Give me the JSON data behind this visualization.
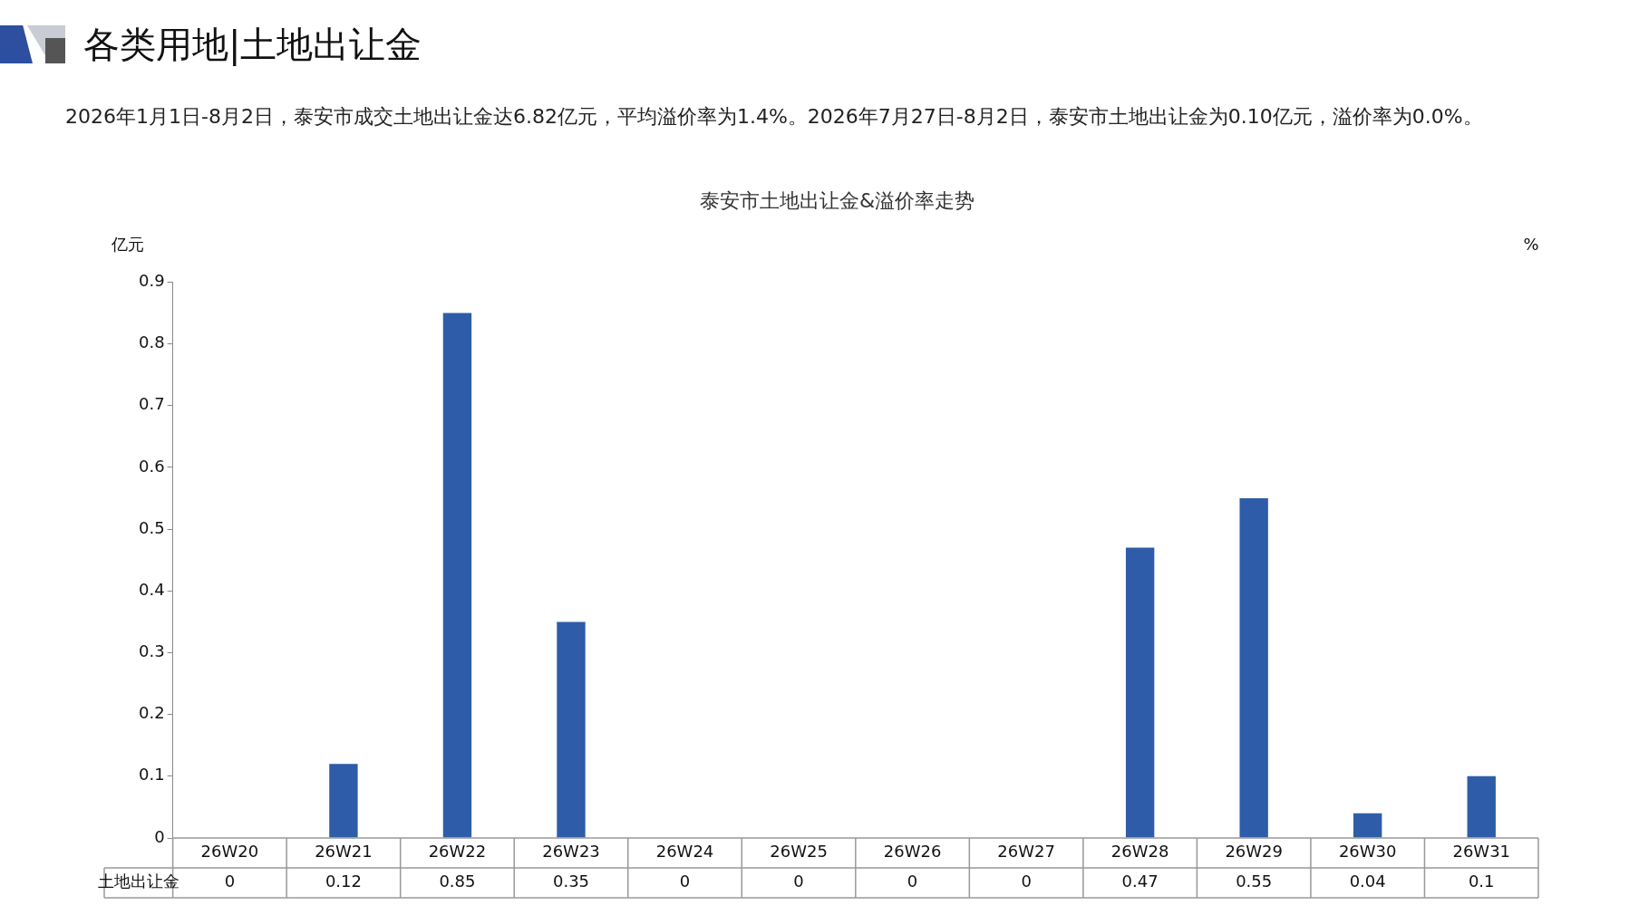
{
  "chart_data": {
    "type": "bar",
    "title": "各类用地|土地出让金",
    "subtitle": "泰安市土地出让金&溢价率走势",
    "ylabel": "亿元",
    "y2label": "%",
    "annotations": [
      "2026年1月1日-8月2日，泰安市成交土地出让金达6.82亿元，平均溢价率为1.4%。2026年7月27日-8月2日，泰安市土地出让金为0.10亿元，溢价率为0.0%。"
    ],
    "categories": [
      "26W20",
      "26W21",
      "26W22",
      "26W23",
      "26W24",
      "26W25",
      "26W26",
      "26W27",
      "26W28",
      "26W29",
      "26W30",
      "26W31"
    ],
    "series": [
      {
        "name": "土地出让金",
        "color": "#2e5ca8",
        "values": [
          0,
          0.12,
          0.85,
          0.35,
          0,
          0,
          0,
          0,
          0.47,
          0.55,
          0.04,
          0.1
        ]
      }
    ],
    "ylim": [
      0,
      0.9
    ],
    "yticks": [
      0,
      0.1,
      0.2,
      0.3,
      0.4,
      0.5,
      0.6,
      0.7,
      0.8,
      0.9
    ],
    "grid": false,
    "legend": false,
    "data_labels": true
  }
}
